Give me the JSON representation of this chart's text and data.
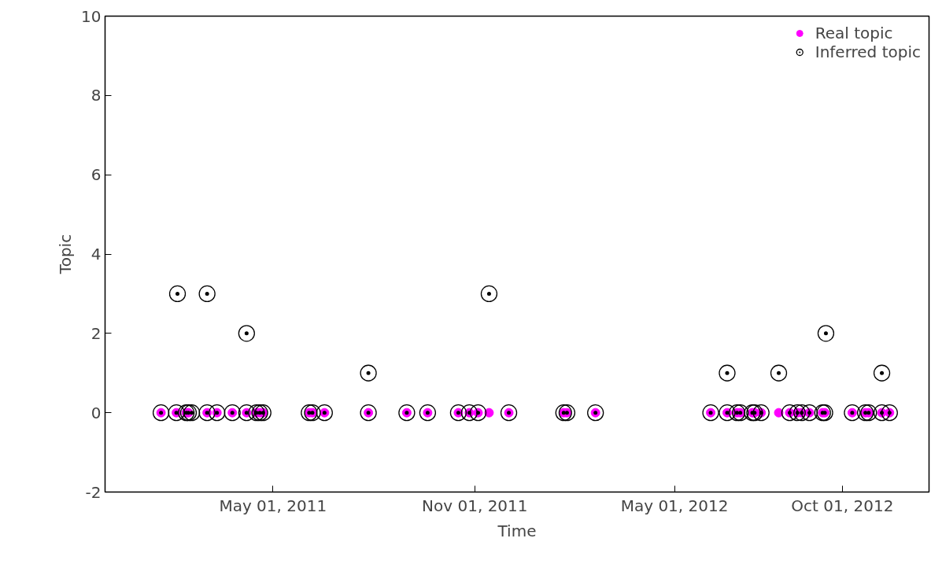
{
  "chart_data": {
    "type": "scatter",
    "xlabel": "Time",
    "ylabel": "Topic",
    "xlim": [
      "2010-11-29",
      "2012-12-19"
    ],
    "ylim": [
      -2,
      10
    ],
    "yticks": [
      -2,
      0,
      2,
      4,
      6,
      8,
      10
    ],
    "xticks": [
      {
        "value": "2011-05-01",
        "label": "May 01, 2011"
      },
      {
        "value": "2011-11-01",
        "label": "Nov 01, 2011"
      },
      {
        "value": "2012-05-01",
        "label": "May 01, 2012"
      },
      {
        "value": "2012-10-01",
        "label": "Oct 01, 2012"
      }
    ],
    "grid": false,
    "legend": "top right",
    "series": [
      {
        "name": "Real topic",
        "color": "#ff00ff",
        "marker": "circle",
        "x": [
          "2011-01-19",
          "2011-02-02",
          "2011-02-11",
          "2011-02-13",
          "2011-03-02",
          "2011-03-11",
          "2011-03-25",
          "2011-04-07",
          "2011-04-16",
          "2011-04-19",
          "2011-04-22",
          "2011-06-03",
          "2011-06-06",
          "2011-06-17",
          "2011-07-27",
          "2011-08-31",
          "2011-09-19",
          "2011-10-17",
          "2011-10-27",
          "2011-11-04",
          "2011-11-14",
          "2011-12-02",
          "2012-01-21",
          "2012-01-24",
          "2012-02-19",
          "2012-06-03",
          "2012-06-18",
          "2012-06-27",
          "2012-06-30",
          "2012-07-11",
          "2012-07-13",
          "2012-07-19",
          "2012-08-04",
          "2012-08-14",
          "2012-08-21",
          "2012-08-25",
          "2012-09-01",
          "2012-09-13",
          "2012-09-15",
          "2012-10-10",
          "2012-10-22",
          "2012-10-25",
          "2012-11-06",
          "2012-11-13"
        ],
        "values": [
          0,
          0,
          0,
          0,
          0,
          0,
          0,
          0,
          0,
          0,
          0,
          0,
          0,
          0,
          0,
          0,
          0,
          0,
          0,
          0,
          0,
          0,
          0,
          0,
          0,
          0,
          0,
          0,
          0,
          0,
          0,
          0,
          0,
          0,
          0,
          0,
          0,
          0,
          0,
          0,
          0,
          0,
          0,
          0
        ]
      },
      {
        "name": "Inferred topic",
        "color": "#000000",
        "marker": "circle_dot",
        "x": [
          "2011-01-19",
          "2011-02-02",
          "2011-02-03",
          "2011-02-11",
          "2011-02-13",
          "2011-02-16",
          "2011-03-02",
          "2011-03-02",
          "2011-03-11",
          "2011-03-25",
          "2011-04-07",
          "2011-04-07",
          "2011-04-16",
          "2011-04-19",
          "2011-04-22",
          "2011-06-03",
          "2011-06-06",
          "2011-06-17",
          "2011-07-27",
          "2011-07-27",
          "2011-08-31",
          "2011-09-19",
          "2011-10-17",
          "2011-10-27",
          "2011-11-04",
          "2011-11-14",
          "2011-12-02",
          "2012-01-21",
          "2012-01-24",
          "2012-02-19",
          "2012-06-03",
          "2012-06-18",
          "2012-06-18",
          "2012-06-27",
          "2012-06-30",
          "2012-07-11",
          "2012-07-13",
          "2012-07-19",
          "2012-08-04",
          "2012-08-14",
          "2012-08-21",
          "2012-08-25",
          "2012-09-01",
          "2012-09-13",
          "2012-09-15",
          "2012-09-16",
          "2012-10-10",
          "2012-10-22",
          "2012-10-25",
          "2012-11-06",
          "2012-11-06",
          "2012-11-13"
        ],
        "values": [
          0,
          0,
          3,
          0,
          0,
          0,
          0,
          3,
          0,
          0,
          0,
          2,
          0,
          0,
          0,
          0,
          0,
          0,
          0,
          1,
          0,
          0,
          0,
          0,
          0,
          3,
          0,
          0,
          0,
          0,
          0,
          0,
          1,
          0,
          0,
          0,
          0,
          0,
          1,
          0,
          0,
          0,
          0,
          0,
          0,
          2,
          0,
          0,
          0,
          0,
          1,
          0
        ]
      }
    ]
  }
}
